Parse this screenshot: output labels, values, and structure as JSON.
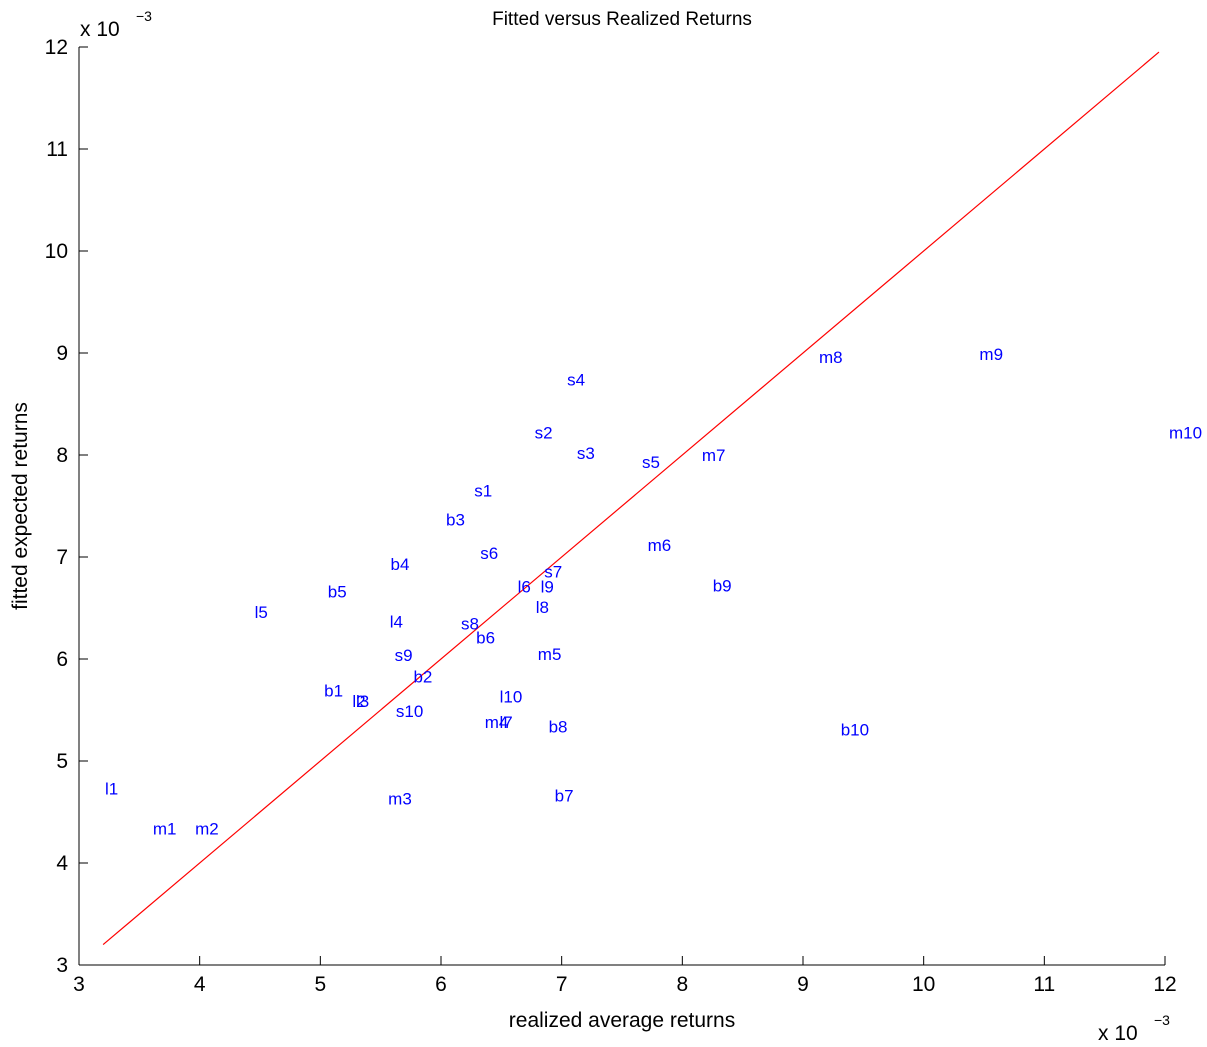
{
  "chart_data": {
    "type": "scatter",
    "title": "Fitted versus Realized Returns",
    "xlabel": "realized average returns",
    "ylabel": "fitted expected returns",
    "x_multiplier": {
      "base": "x 10",
      "exponent": "−3"
    },
    "y_multiplier": {
      "base": "x 10",
      "exponent": "−3"
    },
    "xlim": [
      3,
      12
    ],
    "ylim": [
      3,
      12
    ],
    "xticks": [
      "3",
      "4",
      "5",
      "6",
      "7",
      "8",
      "9",
      "10",
      "11",
      "12"
    ],
    "yticks": [
      "3",
      "4",
      "5",
      "6",
      "7",
      "8",
      "9",
      "10",
      "11",
      "12"
    ],
    "grid": false,
    "colors": {
      "points": "#0000ff",
      "fit_line": "#ff0000",
      "axes": "#000000"
    },
    "fit_line": {
      "x": [
        3.2,
        11.95
      ],
      "y": [
        3.2,
        11.95
      ]
    },
    "points": [
      {
        "label": "s1",
        "x": 6.35,
        "y": 7.65
      },
      {
        "label": "s2",
        "x": 6.85,
        "y": 8.22
      },
      {
        "label": "s3",
        "x": 7.2,
        "y": 8.02
      },
      {
        "label": "s4",
        "x": 7.12,
        "y": 8.74
      },
      {
        "label": "s5",
        "x": 7.74,
        "y": 7.93
      },
      {
        "label": "s6",
        "x": 6.4,
        "y": 7.04
      },
      {
        "label": "s7",
        "x": 6.93,
        "y": 6.86
      },
      {
        "label": "s8",
        "x": 6.24,
        "y": 6.35
      },
      {
        "label": "s9",
        "x": 5.69,
        "y": 6.04
      },
      {
        "label": "s10",
        "x": 5.74,
        "y": 5.49
      },
      {
        "label": "b1",
        "x": 5.11,
        "y": 5.69
      },
      {
        "label": "b2",
        "x": 5.85,
        "y": 5.83
      },
      {
        "label": "b3",
        "x": 6.12,
        "y": 7.37
      },
      {
        "label": "b4",
        "x": 5.66,
        "y": 6.93
      },
      {
        "label": "b5",
        "x": 5.14,
        "y": 6.66
      },
      {
        "label": "b6",
        "x": 6.37,
        "y": 6.21
      },
      {
        "label": "b7",
        "x": 7.02,
        "y": 4.66
      },
      {
        "label": "b8",
        "x": 6.97,
        "y": 5.34
      },
      {
        "label": "b9",
        "x": 8.33,
        "y": 6.72
      },
      {
        "label": "b10",
        "x": 9.43,
        "y": 5.31
      },
      {
        "label": "l1",
        "x": 3.27,
        "y": 4.73
      },
      {
        "label": "l2",
        "x": 5.32,
        "y": 5.59
      },
      {
        "label": "l3",
        "x": 5.35,
        "y": 5.59
      },
      {
        "label": "l4",
        "x": 5.63,
        "y": 6.37
      },
      {
        "label": "l5",
        "x": 4.51,
        "y": 6.46
      },
      {
        "label": "l6",
        "x": 6.69,
        "y": 6.71
      },
      {
        "label": "l7",
        "x": 6.54,
        "y": 5.38
      },
      {
        "label": "l8",
        "x": 6.84,
        "y": 6.51
      },
      {
        "label": "l9",
        "x": 6.88,
        "y": 6.71
      },
      {
        "label": "l10",
        "x": 6.58,
        "y": 5.63
      },
      {
        "label": "m1",
        "x": 3.71,
        "y": 4.34
      },
      {
        "label": "m2",
        "x": 4.06,
        "y": 4.34
      },
      {
        "label": "m3",
        "x": 5.66,
        "y": 4.63
      },
      {
        "label": "m4",
        "x": 6.46,
        "y": 5.38
      },
      {
        "label": "m5",
        "x": 6.9,
        "y": 6.05
      },
      {
        "label": "m6",
        "x": 7.81,
        "y": 7.12
      },
      {
        "label": "m7",
        "x": 8.26,
        "y": 8.0
      },
      {
        "label": "m8",
        "x": 9.23,
        "y": 8.96
      },
      {
        "label": "m9",
        "x": 10.56,
        "y": 8.99
      },
      {
        "label": "m10",
        "x": 12.17,
        "y": 8.22
      }
    ]
  }
}
